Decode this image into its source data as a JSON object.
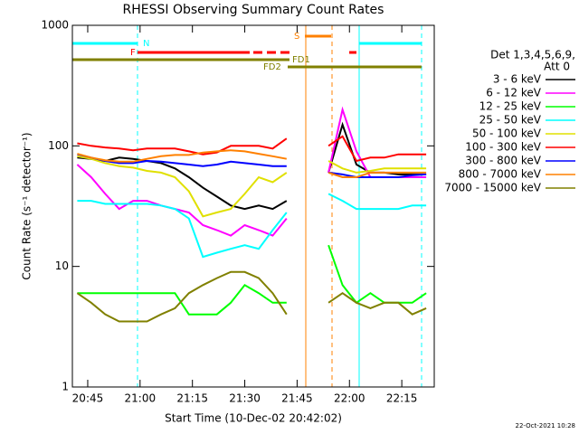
{
  "chart_data": {
    "type": "line",
    "title": "RHESSI Observing Summary Count Rates",
    "x_label": "Start Time (10-Dec-02 20:42:02)",
    "y_label": "Count Rate (s⁻¹ detector⁻¹)",
    "footer": "22-Oct-2021 10:28",
    "legend_header": [
      "Det 1,3,4,5,6,9,",
      "Att 0"
    ],
    "legend": "right",
    "log_y": true,
    "flags": {
      "night": "N",
      "flare": "F",
      "saa": "S",
      "fd1": "FD1",
      "fd2": "FD2"
    },
    "xlim": [
      40.6,
      144.3
    ],
    "ylim": [
      1,
      1000
    ],
    "xticks": [
      {
        "value": 45,
        "label": "20:45"
      },
      {
        "value": 60,
        "label": "21:00"
      },
      {
        "value": 75,
        "label": "21:15"
      },
      {
        "value": 90,
        "label": "21:30"
      },
      {
        "value": 105,
        "label": "21:45"
      },
      {
        "value": 120,
        "label": "22:00"
      },
      {
        "value": 135,
        "label": "22:15"
      }
    ],
    "yticks": [
      1,
      10,
      100,
      1000
    ],
    "x": [
      42,
      46,
      50,
      54,
      58,
      62,
      66,
      70,
      74,
      78,
      82,
      86,
      90,
      94,
      98,
      102,
      106,
      110,
      114,
      118,
      122,
      126,
      130,
      134,
      138,
      142
    ],
    "series": [
      {
        "name": "3 - 6 keV",
        "color": "#000000",
        "values": [
          80,
          78,
          75,
          80,
          78,
          75,
          72,
          65,
          55,
          45,
          38,
          32,
          30,
          32,
          30,
          35,
          null,
          null,
          60,
          150,
          70,
          60,
          60,
          58,
          58,
          58
        ]
      },
      {
        "name": "6 - 12 keV",
        "color": "#ff00ff",
        "values": [
          70,
          55,
          40,
          30,
          35,
          35,
          32,
          30,
          28,
          22,
          20,
          18,
          22,
          20,
          18,
          25,
          null,
          null,
          60,
          200,
          90,
          55,
          55,
          55,
          55,
          55
        ]
      },
      {
        "name": "12 - 25 keV",
        "color": "#00ff00",
        "values": [
          6,
          6,
          6,
          6,
          6,
          6,
          6,
          6,
          4,
          4,
          4,
          5,
          7,
          6,
          5,
          5,
          null,
          null,
          15,
          7,
          5,
          6,
          5,
          5,
          5,
          6
        ]
      },
      {
        "name": "25 - 50 keV",
        "color": "#00ffff",
        "values": [
          35,
          35,
          33,
          33,
          33,
          33,
          32,
          30,
          25,
          12,
          13,
          14,
          15,
          14,
          20,
          28,
          null,
          null,
          40,
          35,
          30,
          30,
          30,
          30,
          32,
          32
        ]
      },
      {
        "name": "50 - 100 keV",
        "color": "#e0e000",
        "values": [
          82,
          78,
          72,
          68,
          66,
          62,
          60,
          55,
          42,
          26,
          28,
          30,
          40,
          55,
          50,
          60,
          null,
          null,
          75,
          65,
          60,
          62,
          65,
          65,
          65,
          65
        ]
      },
      {
        "name": "100 - 300 keV",
        "color": "#ff0000",
        "values": [
          105,
          100,
          97,
          95,
          92,
          95,
          95,
          95,
          90,
          85,
          88,
          100,
          100,
          100,
          95,
          115,
          null,
          null,
          100,
          120,
          75,
          80,
          80,
          85,
          85,
          85
        ]
      },
      {
        "name": "300 - 800 keV",
        "color": "#0000ff",
        "values": [
          85,
          80,
          75,
          72,
          72,
          75,
          74,
          72,
          70,
          68,
          70,
          74,
          72,
          70,
          68,
          68,
          null,
          null,
          60,
          58,
          55,
          55,
          55,
          55,
          57,
          58
        ]
      },
      {
        "name": "800 - 7000 keV",
        "color": "#ff8000",
        "values": [
          86,
          80,
          76,
          74,
          74,
          78,
          82,
          84,
          84,
          88,
          90,
          92,
          90,
          86,
          82,
          78,
          null,
          null,
          60,
          55,
          55,
          60,
          60,
          60,
          60,
          60
        ]
      },
      {
        "name": "7000 - 15000 keV",
        "color": "#808000",
        "values": [
          6,
          5,
          4,
          3.5,
          3.5,
          3.5,
          4,
          4.5,
          6,
          7,
          8,
          9,
          9,
          8,
          6,
          4,
          null,
          null,
          5,
          6,
          5,
          4.5,
          5,
          5,
          4,
          4.5
        ]
      }
    ]
  }
}
